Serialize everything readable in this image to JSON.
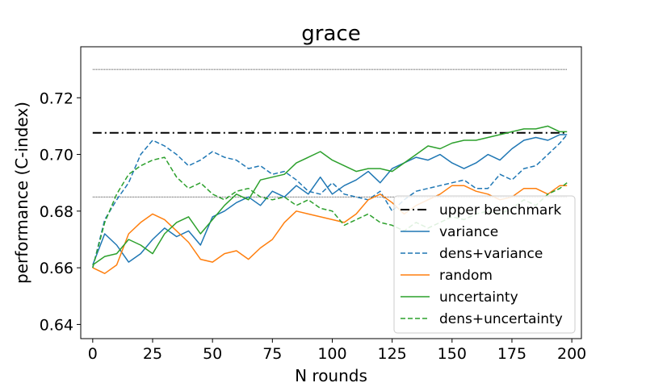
{
  "chart_data": {
    "type": "line",
    "title": "grace",
    "xlabel": "N rounds",
    "ylabel": "performance (C-index)",
    "xlim": [
      -5,
      204
    ],
    "ylim": [
      0.635,
      0.738
    ],
    "xticks": [
      0,
      25,
      50,
      75,
      100,
      125,
      150,
      175,
      200
    ],
    "yticks": [
      0.64,
      0.66,
      0.68,
      0.7,
      0.72
    ],
    "grid": false,
    "legend_position": "lower-right",
    "reference_lines": [
      {
        "y": 0.73,
        "style": "dotted-thin",
        "color": "#000000"
      },
      {
        "y": 0.685,
        "style": "dotted-thin",
        "color": "#000000"
      }
    ],
    "series": [
      {
        "name": "upper benchmark",
        "style": "dashdot",
        "color": "#000000",
        "x": [
          0,
          198
        ],
        "y": [
          0.7076,
          0.7076
        ]
      },
      {
        "name": "variance",
        "style": "solid",
        "color": "#1f77b4",
        "x": [
          0,
          5,
          10,
          15,
          20,
          25,
          30,
          35,
          40,
          45,
          50,
          55,
          60,
          65,
          70,
          75,
          80,
          85,
          90,
          95,
          100,
          105,
          110,
          115,
          120,
          125,
          130,
          135,
          140,
          145,
          150,
          155,
          160,
          165,
          170,
          175,
          180,
          185,
          190,
          195,
          198
        ],
        "y": [
          0.661,
          0.672,
          0.668,
          0.662,
          0.665,
          0.67,
          0.674,
          0.671,
          0.673,
          0.668,
          0.678,
          0.68,
          0.683,
          0.685,
          0.682,
          0.687,
          0.685,
          0.689,
          0.686,
          0.692,
          0.686,
          0.689,
          0.691,
          0.694,
          0.69,
          0.695,
          0.697,
          0.699,
          0.698,
          0.7,
          0.697,
          0.695,
          0.697,
          0.7,
          0.698,
          0.702,
          0.705,
          0.706,
          0.705,
          0.707,
          0.707
        ]
      },
      {
        "name": "dens+variance",
        "style": "dashed",
        "color": "#1f77b4",
        "x": [
          0,
          5,
          10,
          15,
          20,
          25,
          30,
          35,
          40,
          45,
          50,
          55,
          60,
          65,
          70,
          75,
          80,
          85,
          90,
          95,
          100,
          105,
          110,
          115,
          120,
          125,
          130,
          135,
          140,
          145,
          150,
          155,
          160,
          165,
          170,
          175,
          180,
          185,
          190,
          195,
          198
        ],
        "y": [
          0.66,
          0.677,
          0.684,
          0.69,
          0.7,
          0.705,
          0.703,
          0.7,
          0.696,
          0.698,
          0.701,
          0.699,
          0.698,
          0.695,
          0.696,
          0.693,
          0.694,
          0.691,
          0.687,
          0.686,
          0.69,
          0.686,
          0.685,
          0.684,
          0.687,
          0.68,
          0.684,
          0.687,
          0.688,
          0.689,
          0.69,
          0.691,
          0.688,
          0.688,
          0.693,
          0.691,
          0.695,
          0.696,
          0.7,
          0.704,
          0.707
        ]
      },
      {
        "name": "random",
        "style": "solid",
        "color": "#ff7f0e",
        "x": [
          0,
          5,
          10,
          15,
          20,
          25,
          30,
          35,
          40,
          45,
          50,
          55,
          60,
          65,
          70,
          75,
          80,
          85,
          90,
          95,
          100,
          105,
          110,
          115,
          120,
          125,
          130,
          135,
          140,
          145,
          150,
          155,
          160,
          165,
          170,
          175,
          180,
          185,
          190,
          195,
          198
        ],
        "y": [
          0.66,
          0.658,
          0.661,
          0.672,
          0.676,
          0.679,
          0.677,
          0.673,
          0.669,
          0.663,
          0.662,
          0.665,
          0.666,
          0.663,
          0.667,
          0.67,
          0.676,
          0.68,
          0.679,
          0.678,
          0.677,
          0.676,
          0.679,
          0.684,
          0.686,
          0.683,
          0.679,
          0.682,
          0.684,
          0.686,
          0.689,
          0.689,
          0.687,
          0.686,
          0.684,
          0.685,
          0.688,
          0.688,
          0.686,
          0.689,
          0.689
        ]
      },
      {
        "name": "uncertainty",
        "style": "solid",
        "color": "#2ca02c",
        "x": [
          0,
          5,
          10,
          15,
          20,
          25,
          30,
          35,
          40,
          45,
          50,
          55,
          60,
          65,
          70,
          75,
          80,
          85,
          90,
          95,
          100,
          105,
          110,
          115,
          120,
          125,
          130,
          135,
          140,
          145,
          150,
          155,
          160,
          165,
          170,
          175,
          180,
          185,
          190,
          195,
          198
        ],
        "y": [
          0.661,
          0.664,
          0.665,
          0.67,
          0.668,
          0.665,
          0.672,
          0.676,
          0.678,
          0.672,
          0.677,
          0.682,
          0.686,
          0.684,
          0.691,
          0.692,
          0.693,
          0.697,
          0.699,
          0.701,
          0.698,
          0.696,
          0.694,
          0.695,
          0.695,
          0.694,
          0.697,
          0.7,
          0.703,
          0.702,
          0.704,
          0.705,
          0.705,
          0.706,
          0.707,
          0.708,
          0.709,
          0.709,
          0.71,
          0.708,
          0.708
        ]
      },
      {
        "name": "dens+uncertainty",
        "style": "dashed",
        "color": "#2ca02c",
        "x": [
          0,
          5,
          10,
          15,
          20,
          25,
          30,
          35,
          40,
          45,
          50,
          55,
          60,
          65,
          70,
          75,
          80,
          85,
          90,
          95,
          100,
          105,
          110,
          115,
          120,
          125,
          130,
          135,
          140,
          145,
          150,
          155,
          160,
          165,
          170,
          175,
          180,
          185,
          190,
          195,
          198
        ],
        "y": [
          0.66,
          0.676,
          0.686,
          0.693,
          0.696,
          0.698,
          0.699,
          0.692,
          0.688,
          0.69,
          0.686,
          0.684,
          0.687,
          0.688,
          0.685,
          0.684,
          0.685,
          0.682,
          0.684,
          0.681,
          0.68,
          0.675,
          0.677,
          0.679,
          0.676,
          0.675,
          0.673,
          0.676,
          0.674,
          0.676,
          0.678,
          0.677,
          0.679,
          0.68,
          0.679,
          0.681,
          0.684,
          0.682,
          0.686,
          0.688,
          0.69
        ]
      }
    ]
  }
}
